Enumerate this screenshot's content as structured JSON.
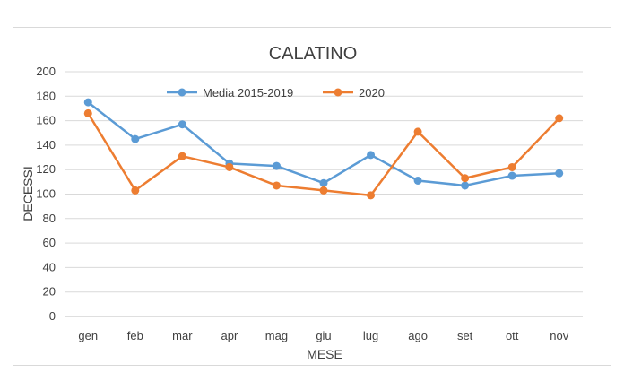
{
  "chart_data": {
    "type": "line",
    "title": "CALATINO",
    "xlabel": "MESE",
    "ylabel": "DECESSI",
    "categories": [
      "gen",
      "feb",
      "mar",
      "apr",
      "mag",
      "giu",
      "lug",
      "ago",
      "set",
      "ott",
      "nov"
    ],
    "ylim": [
      0,
      200
    ],
    "yticks": [
      0,
      20,
      40,
      60,
      80,
      100,
      120,
      140,
      160,
      180,
      200
    ],
    "grid": true,
    "legend_position": "top",
    "series": [
      {
        "name": "Media 2015-2019",
        "color": "#5b9bd5",
        "values": [
          175,
          145,
          157,
          125,
          123,
          109,
          132,
          111,
          107,
          115,
          117
        ]
      },
      {
        "name": "2020",
        "color": "#ed7d31",
        "values": [
          166,
          103,
          131,
          122,
          107,
          103,
          99,
          151,
          113,
          122,
          162
        ]
      }
    ]
  }
}
